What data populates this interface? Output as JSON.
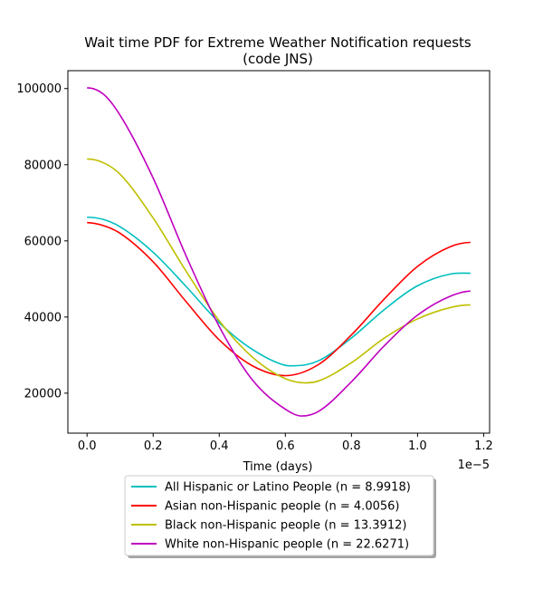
{
  "chart_data": {
    "type": "line",
    "title_line1": "Wait time PDF for Extreme Weather Notification  requests",
    "title_line2": "(code JNS)",
    "xlabel": "Time (days)",
    "ylabel": "",
    "x_offset_text": "1e−5",
    "x_scale": 1e-05,
    "xlim": [
      -0.058,
      1.218
    ],
    "ylim": [
      9500,
      104700
    ],
    "x_ticks": [
      0.0,
      0.2,
      0.4,
      0.6,
      0.8,
      1.0,
      1.2
    ],
    "x_tick_labels": [
      "0.0",
      "0.2",
      "0.4",
      "0.6",
      "0.8",
      "1.0",
      "1.2"
    ],
    "y_ticks": [
      20000,
      40000,
      60000,
      80000,
      100000
    ],
    "y_tick_labels": [
      "20000",
      "40000",
      "60000",
      "80000",
      "100000"
    ],
    "grid": false,
    "legend_position": "below the plot, centered",
    "series": [
      {
        "name": "All Hispanic or Latino People (n = 8.9918)",
        "color": "#00bfbf",
        "x": [
          0.0,
          0.05,
          0.1,
          0.2,
          0.3,
          0.4,
          0.5,
          0.6,
          0.63,
          0.7,
          0.8,
          0.9,
          1.0,
          1.1,
          1.16
        ],
        "y": [
          66200,
          65600,
          63700,
          57000,
          48000,
          38500,
          31500,
          27300,
          27200,
          28500,
          34500,
          42000,
          48200,
          51300,
          51500
        ]
      },
      {
        "name": "Asian non-Hispanic people (n = 4.0056)",
        "color": "#ff0000",
        "x": [
          0.0,
          0.05,
          0.1,
          0.2,
          0.3,
          0.4,
          0.5,
          0.6,
          0.7,
          0.8,
          0.9,
          1.0,
          1.1,
          1.16
        ],
        "y": [
          64800,
          64000,
          62000,
          54500,
          44000,
          34000,
          27200,
          24600,
          27500,
          35300,
          44800,
          53300,
          58500,
          59600
        ]
      },
      {
        "name": "Black non-Hispanic people (n = 13.3912)",
        "color": "#bfbf00",
        "x": [
          0.0,
          0.05,
          0.1,
          0.2,
          0.3,
          0.4,
          0.5,
          0.6,
          0.66,
          0.7,
          0.8,
          0.9,
          1.0,
          1.1,
          1.16
        ],
        "y": [
          81500,
          80500,
          77500,
          66000,
          52000,
          39000,
          29500,
          23800,
          22700,
          23200,
          28000,
          34500,
          39500,
          42500,
          43200
        ]
      },
      {
        "name": "White non-Hispanic people (n = 22.6271)",
        "color": "#bf00bf",
        "x": [
          0.0,
          0.05,
          0.1,
          0.2,
          0.3,
          0.4,
          0.5,
          0.6,
          0.65,
          0.7,
          0.8,
          0.9,
          1.0,
          1.1,
          1.16
        ],
        "y": [
          100200,
          98500,
          93000,
          76500,
          56000,
          37500,
          23500,
          15800,
          14000,
          15200,
          23000,
          32500,
          40500,
          45500,
          46800
        ]
      }
    ]
  }
}
